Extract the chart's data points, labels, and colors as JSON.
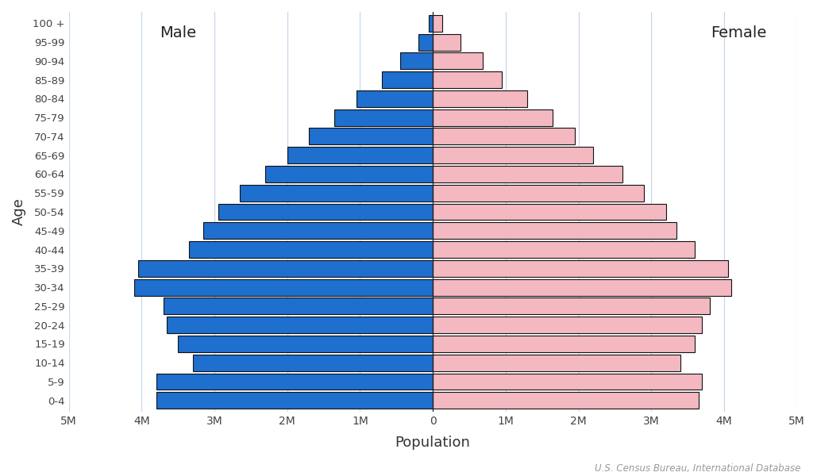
{
  "age_groups": [
    "0-4",
    "5-9",
    "10-14",
    "15-19",
    "20-24",
    "25-29",
    "30-34",
    "35-39",
    "40-44",
    "45-49",
    "50-54",
    "55-59",
    "60-64",
    "65-69",
    "70-74",
    "75-79",
    "80-84",
    "85-89",
    "90-94",
    "95-99",
    "100 +"
  ],
  "male": [
    3800000,
    3800000,
    3300000,
    3500000,
    3650000,
    3700000,
    4100000,
    4050000,
    3350000,
    3150000,
    2950000,
    2650000,
    2300000,
    2000000,
    1700000,
    1350000,
    1050000,
    700000,
    450000,
    200000,
    60000
  ],
  "female": [
    3650000,
    3700000,
    3400000,
    3600000,
    3700000,
    3800000,
    4100000,
    4050000,
    3600000,
    3350000,
    3200000,
    2900000,
    2600000,
    2200000,
    1950000,
    1650000,
    1300000,
    950000,
    680000,
    380000,
    130000
  ],
  "male_color": "#1f6fcf",
  "female_color": "#f4b8c1",
  "bar_edgecolor": "#111111",
  "bar_linewidth": 0.8,
  "xlim": 5000000,
  "xlabel": "Population",
  "ylabel": "Age",
  "grid_color": "#c8d8e8",
  "grid_linewidth": 0.9,
  "background_color": "#ffffff",
  "male_label": "Male",
  "female_label": "Female",
  "source_text": "U.S. Census Bureau, International Database",
  "tick_vals": [
    -5000000,
    -4000000,
    -3000000,
    -2000000,
    -1000000,
    0,
    1000000,
    2000000,
    3000000,
    4000000,
    5000000
  ],
  "tick_labels": [
    "5M",
    "4M",
    "3M",
    "2M",
    "1M",
    "0",
    "1M",
    "2M",
    "3M",
    "4M",
    "5M"
  ]
}
